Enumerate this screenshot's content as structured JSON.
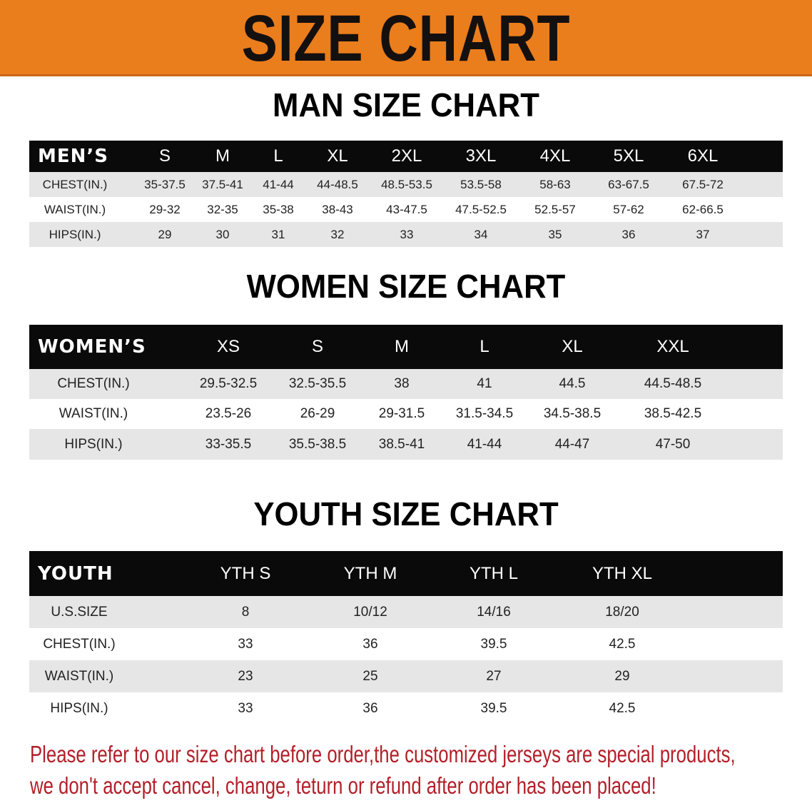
{
  "banner": {
    "title": "SIZE CHART",
    "color": "#ea7d1c"
  },
  "men": {
    "title": "MAN SIZE CHART",
    "header": [
      "MEN’S",
      "S",
      "M",
      "L",
      "XL",
      "2XL",
      "3XL",
      "4XL",
      "5XL",
      "6XL"
    ],
    "rows": [
      [
        "CHEST(IN.)",
        "35-37.5",
        "37.5-41",
        "41-44",
        "44-48.5",
        "48.5-53.5",
        "53.5-58",
        "58-63",
        "63-67.5",
        "67.5-72"
      ],
      [
        "WAIST(IN.)",
        "29-32",
        "32-35",
        "35-38",
        "38-43",
        "43-47.5",
        "47.5-52.5",
        "52.5-57",
        "57-62",
        "62-66.5"
      ],
      [
        "HIPS(IN.)",
        "29",
        "30",
        "31",
        "32",
        "33",
        "34",
        "35",
        "36",
        "37"
      ]
    ]
  },
  "women": {
    "title": "WOMEN SIZE CHART",
    "header": [
      "WOMEN’S",
      "XS",
      "S",
      "M",
      "L",
      "XL",
      "XXL"
    ],
    "rows": [
      [
        "CHEST(IN.)",
        "29.5-32.5",
        "32.5-35.5",
        "38",
        "41",
        "44.5",
        "44.5-48.5"
      ],
      [
        "WAIST(IN.)",
        "23.5-26",
        "26-29",
        "29-31.5",
        "31.5-34.5",
        "34.5-38.5",
        "38.5-42.5"
      ],
      [
        "HIPS(IN.)",
        "33-35.5",
        "35.5-38.5",
        "38.5-41",
        "41-44",
        "44-47",
        "47-50"
      ]
    ]
  },
  "youth": {
    "title": "YOUTH SIZE CHART",
    "header": [
      "YOUTH",
      "YTH S",
      "YTH M",
      "YTH L",
      "YTH XL"
    ],
    "rows": [
      [
        "U.S.SIZE",
        "8",
        "10/12",
        "14/16",
        "18/20"
      ],
      [
        "CHEST(IN.)",
        "33",
        "36",
        "39.5",
        "42.5"
      ],
      [
        "WAIST(IN.)",
        "23",
        "25",
        "27",
        "29"
      ],
      [
        "HIPS(IN.)",
        "33",
        "36",
        "39.5",
        "42.5"
      ]
    ]
  },
  "notice": {
    "line1": "Please refer to our size chart before order,the customized jerseys are special products,",
    "line2": "we don't accept cancel, change, teturn or refund after order has been placed!",
    "color": "#b3202a"
  }
}
